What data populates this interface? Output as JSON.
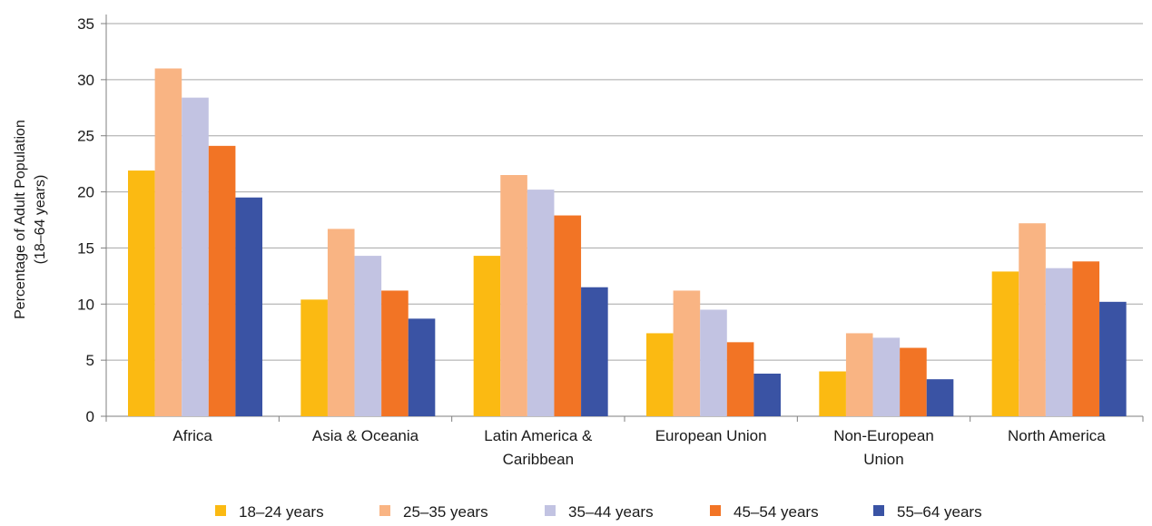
{
  "chart_data": {
    "type": "bar",
    "title": "",
    "xlabel": "",
    "ylabel": [
      "Percentage of Adult Population",
      "(18–64 years)"
    ],
    "ylim": [
      0,
      35
    ],
    "yticks": [
      0,
      5,
      10,
      15,
      20,
      25,
      30,
      35
    ],
    "grid": true,
    "legend_position": "bottom",
    "categories": [
      [
        "Africa"
      ],
      [
        "Asia & Oceania"
      ],
      [
        "Latin America &",
        "Caribbean"
      ],
      [
        "European Union"
      ],
      [
        "Non-European",
        "Union"
      ],
      [
        "North America"
      ]
    ],
    "series": [
      {
        "name": "18–24 years",
        "color": "#FBBA12",
        "values": [
          21.9,
          10.4,
          14.3,
          7.4,
          4.0,
          12.9
        ]
      },
      {
        "name": "25–35 years",
        "color": "#F9B483",
        "values": [
          31.0,
          16.7,
          21.5,
          11.2,
          7.4,
          17.2
        ]
      },
      {
        "name": "35–44 years",
        "color": "#C2C3E2",
        "values": [
          28.4,
          14.3,
          20.2,
          9.5,
          7.0,
          13.2
        ]
      },
      {
        "name": "45–54 years",
        "color": "#F27425",
        "values": [
          24.1,
          11.2,
          17.9,
          6.6,
          6.1,
          13.8
        ]
      },
      {
        "name": "55–64 years",
        "color": "#3A53A4",
        "values": [
          19.5,
          8.7,
          11.5,
          3.8,
          3.3,
          10.2
        ]
      }
    ]
  }
}
